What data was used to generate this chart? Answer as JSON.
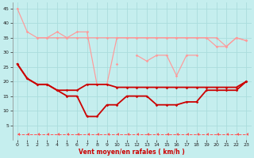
{
  "x": [
    0,
    1,
    2,
    3,
    4,
    5,
    6,
    7,
    8,
    9,
    10,
    11,
    12,
    13,
    14,
    15,
    16,
    17,
    18,
    19,
    20,
    21,
    22,
    23
  ],
  "y_pink1": [
    45,
    37,
    35,
    35,
    35,
    35,
    35,
    35,
    35,
    35,
    35,
    35,
    35,
    35,
    35,
    35,
    35,
    35,
    35,
    35,
    32,
    32,
    35,
    34
  ],
  "y_pink2": [
    null,
    null,
    35,
    35,
    37,
    35,
    37,
    37,
    19,
    19,
    35,
    35,
    35,
    35,
    35,
    35,
    35,
    35,
    35,
    35,
    35,
    32,
    35,
    34
  ],
  "y_pink3": [
    null,
    null,
    null,
    null,
    null,
    null,
    null,
    null,
    null,
    null,
    26,
    null,
    29,
    27,
    29,
    29,
    22,
    29,
    29,
    null,
    null,
    null,
    null,
    null
  ],
  "y_dark1": [
    26,
    21,
    19,
    19,
    17,
    17,
    17,
    19,
    19,
    19,
    18,
    18,
    18,
    18,
    18,
    18,
    18,
    18,
    18,
    18,
    18,
    18,
    18,
    20
  ],
  "y_dark2": [
    26,
    21,
    19,
    19,
    17,
    15,
    15,
    8,
    8,
    12,
    12,
    15,
    15,
    15,
    12,
    12,
    12,
    13,
    13,
    17,
    17,
    17,
    17,
    20
  ],
  "y_flat": [
    2,
    2,
    2,
    2,
    2,
    2,
    2,
    2,
    2,
    2,
    2,
    2,
    2,
    2,
    2,
    2,
    2,
    2,
    2,
    2,
    2,
    2,
    2,
    2
  ],
  "xlabel": "Vent moyen/en rafales ( km/h )",
  "ylim": [
    0,
    47
  ],
  "xlim": [
    -0.5,
    23.5
  ],
  "yticks": [
    5,
    10,
    15,
    20,
    25,
    30,
    35,
    40,
    45
  ],
  "xticks": [
    0,
    1,
    2,
    3,
    4,
    5,
    6,
    7,
    8,
    9,
    10,
    11,
    12,
    13,
    14,
    15,
    16,
    17,
    18,
    19,
    20,
    21,
    22,
    23
  ],
  "bg_color": "#c5eeee",
  "grid_color": "#aadddd",
  "color_pink": "#ff9999",
  "color_dark": "#cc0000",
  "color_flat": "#ff5555"
}
